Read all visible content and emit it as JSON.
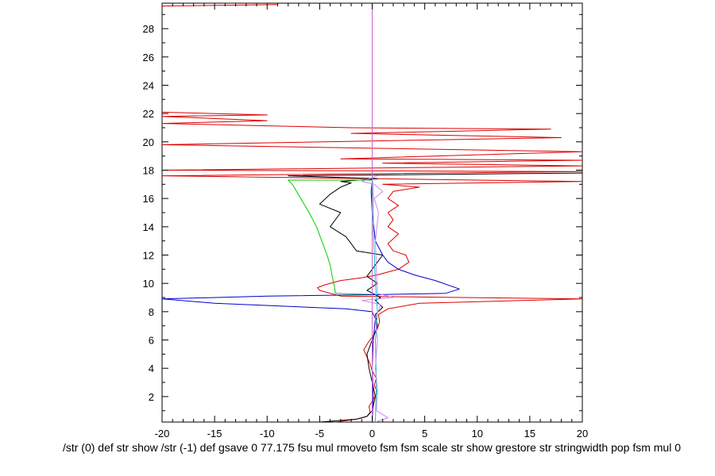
{
  "chart_data": {
    "type": "line",
    "title": "",
    "xlabel": "/str (0) def str show /str (-1) def gsave 0 77.175 fsu mul rmoveto fsm fsm scale str show grestore str stringwidth pop fsm mul 0",
    "ylabel": "",
    "xlim": [
      -20,
      20
    ],
    "ylim": [
      0.2,
      29.8
    ],
    "x_ticks": [
      -20,
      -15,
      -10,
      -5,
      0,
      5,
      10,
      15,
      20
    ],
    "x_tick_labels": [
      "-20",
      "-15",
      "-10",
      "-5",
      "0",
      "5",
      "10",
      "15",
      "20"
    ],
    "y_ticks": [
      2,
      4,
      6,
      8,
      10,
      12,
      14,
      16,
      18,
      20,
      22,
      24,
      26,
      28
    ],
    "y_tick_labels": [
      "2",
      "4",
      "6",
      "8",
      "10",
      "12",
      "14",
      "16",
      "18",
      "20",
      "22",
      "24",
      "26",
      "28"
    ],
    "grid": false,
    "series": [
      {
        "name": "red",
        "color": "#dd0000",
        "points": [
          [
            -3.5,
            0.2
          ],
          [
            -1.5,
            0.4
          ],
          [
            -0.5,
            0.6
          ],
          [
            -0.2,
            0.9
          ],
          [
            -0.3,
            1.3
          ],
          [
            0.1,
            1.8
          ],
          [
            0.5,
            2.3
          ],
          [
            0.2,
            2.8
          ],
          [
            0.4,
            3.3
          ],
          [
            0.0,
            3.8
          ],
          [
            -0.2,
            4.3
          ],
          [
            -0.5,
            4.8
          ],
          [
            -0.8,
            5.3
          ],
          [
            -0.4,
            5.8
          ],
          [
            0.1,
            6.3
          ],
          [
            0.5,
            6.8
          ],
          [
            0.7,
            7.3
          ],
          [
            0.6,
            7.8
          ],
          [
            1.5,
            8.2
          ],
          [
            4.5,
            8.6
          ],
          [
            20,
            8.9
          ],
          [
            -3,
            9.1
          ],
          [
            -5,
            9.5
          ],
          [
            -5.2,
            9.7
          ],
          [
            -4.5,
            9.9
          ],
          [
            -3,
            10.2
          ],
          [
            -1,
            10.4
          ],
          [
            0.5,
            10.6
          ],
          [
            1.5,
            10.8
          ],
          [
            2.5,
            11.0
          ],
          [
            3.5,
            11.5
          ],
          [
            3.2,
            12.0
          ],
          [
            2.0,
            12.3
          ],
          [
            1.5,
            12.8
          ],
          [
            2.5,
            13.5
          ],
          [
            1.5,
            14.0
          ],
          [
            2.0,
            14.5
          ],
          [
            1.5,
            15.0
          ],
          [
            2.5,
            15.5
          ],
          [
            1.5,
            16.0
          ],
          [
            2.0,
            16.5
          ],
          [
            4.5,
            16.8
          ],
          [
            1.0,
            17.0
          ],
          [
            20,
            17.2
          ],
          [
            -20,
            17.6
          ],
          [
            20,
            17.9
          ],
          [
            -20,
            18.0
          ],
          [
            20,
            18.3
          ],
          [
            1.0,
            18.5
          ],
          [
            20,
            18.7
          ],
          [
            -3,
            18.8
          ],
          [
            20,
            19.3
          ],
          [
            -20,
            19.8
          ],
          [
            18,
            20.3
          ],
          [
            -2,
            20.6
          ],
          [
            17,
            20.9
          ],
          [
            -2,
            21.0
          ],
          [
            -20,
            21.3
          ],
          [
            -10,
            21.5
          ],
          [
            -20,
            21.8
          ],
          [
            -10,
            21.9
          ],
          [
            -20,
            22.1
          ]
        ]
      },
      {
        "name": "red-top",
        "color": "#dd0000",
        "points": [
          [
            -20,
            29.6
          ],
          [
            -9,
            29.7
          ]
        ]
      },
      {
        "name": "black",
        "color": "#000000",
        "points": [
          [
            -5,
            0.2
          ],
          [
            -1.5,
            0.4
          ],
          [
            -0.5,
            0.6
          ],
          [
            0.0,
            1.0
          ],
          [
            0.3,
            2.0
          ],
          [
            0.0,
            3.0
          ],
          [
            -0.3,
            4.0
          ],
          [
            -0.5,
            5.0
          ],
          [
            0.0,
            6.0
          ],
          [
            0.5,
            7.0
          ],
          [
            0.3,
            7.8
          ],
          [
            1.0,
            8.3
          ],
          [
            0.3,
            8.8
          ],
          [
            0.8,
            9.0
          ],
          [
            -0.5,
            9.5
          ],
          [
            0.5,
            10.0
          ],
          [
            -0.5,
            10.5
          ],
          [
            0.0,
            11.0
          ],
          [
            0.5,
            11.5
          ],
          [
            1.0,
            12.0
          ],
          [
            -1.5,
            12.3
          ],
          [
            -2,
            12.8
          ],
          [
            -2.5,
            13.3
          ],
          [
            -4,
            14.0
          ],
          [
            -3,
            15.0
          ],
          [
            -5,
            15.6
          ],
          [
            -4,
            16.3
          ],
          [
            -3,
            16.8
          ],
          [
            -2,
            17.1
          ],
          [
            -3,
            17.2
          ],
          [
            0.5,
            17.4
          ],
          [
            -8,
            17.6
          ],
          [
            20,
            17.8
          ]
        ]
      },
      {
        "name": "green",
        "color": "#00cc00",
        "points": [
          [
            -3.5,
            9.3
          ],
          [
            -3.6,
            9.8
          ],
          [
            -3.8,
            10.5
          ],
          [
            -4.0,
            11.3
          ],
          [
            -4.3,
            12.0
          ],
          [
            -4.8,
            13.0
          ],
          [
            -5.3,
            14.0
          ],
          [
            -6.0,
            15.0
          ],
          [
            -6.8,
            16.0
          ],
          [
            -7.6,
            17.0
          ],
          [
            -8,
            17.3
          ],
          [
            0,
            17.3
          ]
        ]
      },
      {
        "name": "green-lower",
        "color": "#00cc00",
        "points": [
          [
            -3.5,
            9.3
          ],
          [
            0.5,
            9.2
          ]
        ]
      },
      {
        "name": "blue",
        "color": "#0000cc",
        "points": [
          [
            0.0,
            0.2
          ],
          [
            0.1,
            2.0
          ],
          [
            0.0,
            4.0
          ],
          [
            0.1,
            6.0
          ],
          [
            0.3,
            7.5
          ],
          [
            0.0,
            8.0
          ],
          [
            -2.5,
            8.2
          ],
          [
            -15,
            8.6
          ],
          [
            -20,
            8.9
          ],
          [
            -10,
            9.1
          ],
          [
            0.0,
            9.2
          ],
          [
            7.0,
            9.3
          ],
          [
            8.3,
            9.6
          ],
          [
            6.0,
            10.2
          ],
          [
            4.0,
            10.6
          ],
          [
            2.5,
            11.0
          ],
          [
            1.5,
            11.5
          ],
          [
            1.0,
            12.0
          ],
          [
            0.3,
            13.0
          ],
          [
            0.0,
            15.0
          ],
          [
            -0.1,
            16.5
          ],
          [
            0.0,
            17.2
          ]
        ]
      },
      {
        "name": "cyan",
        "color": "#00cccc",
        "points": [
          [
            0.3,
            0.2
          ],
          [
            0.4,
            3.0
          ],
          [
            0.3,
            6.0
          ],
          [
            0.5,
            8.0
          ],
          [
            0.4,
            9.0
          ],
          [
            0.3,
            10.0
          ],
          [
            0.2,
            12.0
          ],
          [
            0.1,
            14.0
          ],
          [
            0.1,
            16.0
          ],
          [
            0.0,
            18.0
          ]
        ]
      },
      {
        "name": "violet",
        "color": "#cc88ee",
        "points": [
          [
            0.3,
            0.2
          ],
          [
            1.5,
            0.5
          ],
          [
            0.4,
            1.0
          ],
          [
            0.5,
            2.5
          ],
          [
            0.3,
            4.0
          ],
          [
            0.5,
            6.0
          ],
          [
            0.3,
            7.5
          ],
          [
            0.8,
            8.5
          ],
          [
            -1.0,
            8.8
          ],
          [
            2.0,
            9.0
          ],
          [
            0.5,
            9.3
          ],
          [
            0.4,
            11.0
          ],
          [
            0.3,
            13.0
          ],
          [
            0.6,
            15.0
          ],
          [
            0.2,
            16.0
          ],
          [
            1.0,
            16.5
          ],
          [
            0.2,
            17.0
          ],
          [
            -1.0,
            17.2
          ],
          [
            0.5,
            17.6
          ]
        ]
      },
      {
        "name": "magenta",
        "color": "#cc66cc",
        "points": [
          [
            0,
            0.2
          ],
          [
            0,
            29.8
          ]
        ]
      }
    ]
  }
}
